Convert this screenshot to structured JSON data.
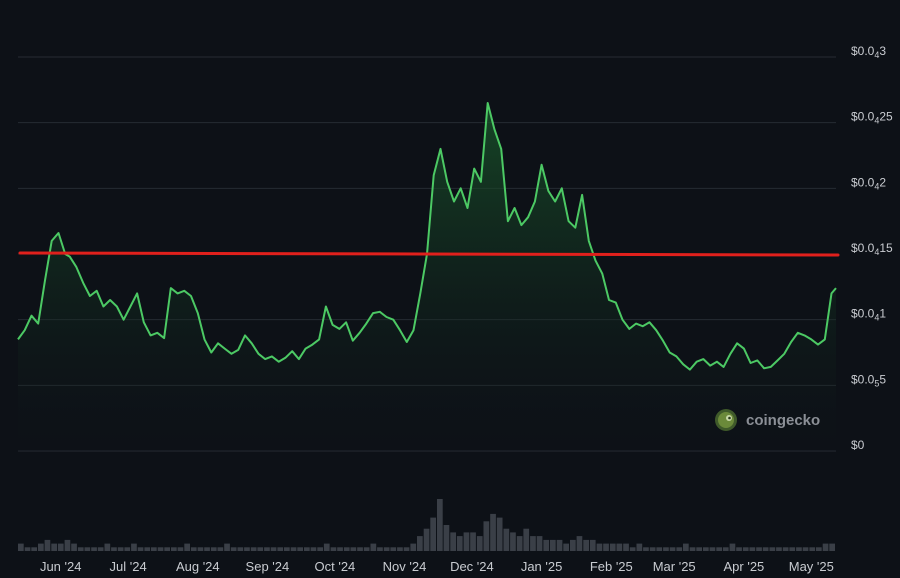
{
  "chart_data": {
    "type": "line",
    "title": "",
    "xlabel": "",
    "ylabel": "",
    "x_ticks": [
      "Jun '24",
      "Jul '24",
      "Aug '24",
      "Sep '24",
      "Oct '24",
      "Nov '24",
      "Dec '24",
      "Jan '25",
      "Feb '25",
      "Mar '25",
      "Apr '25",
      "May '25"
    ],
    "y_ticks": [
      {
        "value": 0,
        "parts": [
          {
            "t": "$0"
          }
        ]
      },
      {
        "value": 5e-06,
        "parts": [
          {
            "t": "$0.0"
          },
          {
            "t": "5",
            "sub": true
          },
          {
            "t": "5"
          }
        ]
      },
      {
        "value": 1e-05,
        "parts": [
          {
            "t": "$0.0"
          },
          {
            "t": "4",
            "sub": true
          },
          {
            "t": "1"
          }
        ]
      },
      {
        "value": 1.5e-05,
        "parts": [
          {
            "t": "$0.0"
          },
          {
            "t": "4",
            "sub": true
          },
          {
            "t": "15"
          }
        ]
      },
      {
        "value": 2e-05,
        "parts": [
          {
            "t": "$0.0"
          },
          {
            "t": "4",
            "sub": true
          },
          {
            "t": "2"
          }
        ]
      },
      {
        "value": 2.5e-05,
        "parts": [
          {
            "t": "$0.0"
          },
          {
            "t": "4",
            "sub": true
          },
          {
            "t": "25"
          }
        ]
      },
      {
        "value": 3e-05,
        "parts": [
          {
            "t": "$0.0"
          },
          {
            "t": "4",
            "sub": true
          },
          {
            "t": "3"
          }
        ]
      }
    ],
    "ylim": [
      0,
      3e-05
    ],
    "grid": true,
    "price_series": {
      "color": "#4cc964",
      "x": [
        "2024-05-13",
        "2024-05-16",
        "2024-05-19",
        "2024-05-22",
        "2024-05-25",
        "2024-05-28",
        "2024-05-31",
        "2024-06-03",
        "2024-06-05",
        "2024-06-08",
        "2024-06-11",
        "2024-06-14",
        "2024-06-17",
        "2024-06-20",
        "2024-06-23",
        "2024-06-26",
        "2024-06-29",
        "2024-07-02",
        "2024-07-05",
        "2024-07-08",
        "2024-07-11",
        "2024-07-14",
        "2024-07-17",
        "2024-07-20",
        "2024-07-23",
        "2024-07-26",
        "2024-07-29",
        "2024-08-01",
        "2024-08-04",
        "2024-08-07",
        "2024-08-10",
        "2024-08-13",
        "2024-08-16",
        "2024-08-19",
        "2024-08-22",
        "2024-08-25",
        "2024-08-28",
        "2024-08-31",
        "2024-09-03",
        "2024-09-06",
        "2024-09-09",
        "2024-09-12",
        "2024-09-15",
        "2024-09-18",
        "2024-09-21",
        "2024-09-24",
        "2024-09-27",
        "2024-09-30",
        "2024-10-03",
        "2024-10-06",
        "2024-10-09",
        "2024-10-12",
        "2024-10-15",
        "2024-10-18",
        "2024-10-21",
        "2024-10-24",
        "2024-10-27",
        "2024-10-30",
        "2024-11-02",
        "2024-11-05",
        "2024-11-08",
        "2024-11-11",
        "2024-11-14",
        "2024-11-17",
        "2024-11-20",
        "2024-11-23",
        "2024-11-26",
        "2024-11-29",
        "2024-12-02",
        "2024-12-05",
        "2024-12-08",
        "2024-12-11",
        "2024-12-14",
        "2024-12-17",
        "2024-12-20",
        "2024-12-23",
        "2024-12-26",
        "2024-12-29",
        "2025-01-01",
        "2025-01-04",
        "2025-01-07",
        "2025-01-10",
        "2025-01-13",
        "2025-01-16",
        "2025-01-19",
        "2025-01-22",
        "2025-01-25",
        "2025-01-28",
        "2025-01-31",
        "2025-02-03",
        "2025-02-06",
        "2025-02-09",
        "2025-02-12",
        "2025-02-15",
        "2025-02-18",
        "2025-02-21",
        "2025-02-24",
        "2025-02-27",
        "2025-03-02",
        "2025-03-05",
        "2025-03-08",
        "2025-03-11",
        "2025-03-14",
        "2025-03-17",
        "2025-03-20",
        "2025-03-23",
        "2025-03-26",
        "2025-03-29",
        "2025-04-01",
        "2025-04-04",
        "2025-04-07",
        "2025-04-10",
        "2025-04-13",
        "2025-04-16",
        "2025-04-19",
        "2025-04-22",
        "2025-04-25",
        "2025-04-28",
        "2025-05-01",
        "2025-05-04",
        "2025-05-07",
        "2025-05-10",
        "2025-05-12"
      ],
      "y": [
        8.5e-06,
        9.2e-06,
        1.03e-05,
        9.7e-06,
        1.3e-05,
        1.6e-05,
        1.66e-05,
        1.5e-05,
        1.48e-05,
        1.4e-05,
        1.28e-05,
        1.18e-05,
        1.22e-05,
        1.1e-05,
        1.15e-05,
        1.1e-05,
        1e-05,
        1.1e-05,
        1.2e-05,
        9.8e-06,
        8.8e-06,
        9e-06,
        8.6e-06,
        1.24e-05,
        1.2e-05,
        1.22e-05,
        1.18e-05,
        1.05e-05,
        8.5e-06,
        7.5e-06,
        8.2e-06,
        7.8e-06,
        7.4e-06,
        7.7e-06,
        8.8e-06,
        8.2e-06,
        7.4e-06,
        7e-06,
        7.2e-06,
        6.8e-06,
        7.1e-06,
        7.6e-06,
        7e-06,
        7.8e-06,
        8.1e-06,
        8.5e-06,
        1.1e-05,
        9.6e-06,
        9.3e-06,
        9.8e-06,
        8.4e-06,
        9e-06,
        9.7e-06,
        1.05e-05,
        1.06e-05,
        1.02e-05,
        1e-05,
        9.2e-06,
        8.3e-06,
        9.2e-06,
        1.2e-05,
        1.5e-05,
        2.1e-05,
        2.3e-05,
        2.05e-05,
        1.9e-05,
        2e-05,
        1.85e-05,
        2.15e-05,
        2.05e-05,
        2.65e-05,
        2.45e-05,
        2.3e-05,
        1.75e-05,
        1.85e-05,
        1.72e-05,
        1.78e-05,
        1.9e-05,
        2.18e-05,
        1.98e-05,
        1.9e-05,
        2e-05,
        1.75e-05,
        1.7e-05,
        1.95e-05,
        1.6e-05,
        1.45e-05,
        1.35e-05,
        1.15e-05,
        1.13e-05,
        1e-05,
        9.3e-06,
        9.7e-06,
        9.5e-06,
        9.8e-06,
        9.2e-06,
        8.4e-06,
        7.5e-06,
        7.2e-06,
        6.6e-06,
        6.2e-06,
        6.8e-06,
        7e-06,
        6.5e-06,
        6.8e-06,
        6.4e-06,
        7.4e-06,
        8.2e-06,
        7.8e-06,
        6.7e-06,
        6.9e-06,
        6.3e-06,
        6.4e-06,
        6.9e-06,
        7.4e-06,
        8.3e-06,
        9e-06,
        8.8e-06,
        8.5e-06,
        8.1e-06,
        8.5e-06,
        1.2e-05,
        1.24e-05
      ]
    },
    "reference_line": {
      "color": "#e0201c",
      "y": 1.5e-05
    },
    "volume_series": {
      "color": "#3a3f47",
      "values": [
        2,
        1,
        1,
        2,
        3,
        2,
        2,
        3,
        2,
        1,
        1,
        1,
        1,
        2,
        1,
        1,
        1,
        2,
        1,
        1,
        1,
        1,
        1,
        1,
        1,
        2,
        1,
        1,
        1,
        1,
        1,
        2,
        1,
        1,
        1,
        1,
        1,
        1,
        1,
        1,
        1,
        1,
        1,
        1,
        1,
        1,
        2,
        1,
        1,
        1,
        1,
        1,
        1,
        2,
        1,
        1,
        1,
        1,
        1,
        2,
        4,
        6,
        9,
        14,
        7,
        5,
        4,
        5,
        5,
        4,
        8,
        10,
        9,
        6,
        5,
        4,
        6,
        4,
        4,
        3,
        3,
        3,
        2,
        3,
        4,
        3,
        3,
        2,
        2,
        2,
        2,
        2,
        1,
        2,
        1,
        1,
        1,
        1,
        1,
        1,
        2,
        1,
        1,
        1,
        1,
        1,
        1,
        2,
        1,
        1,
        1,
        1,
        1,
        1,
        1,
        1,
        1,
        1,
        1,
        1,
        1,
        2,
        2
      ]
    },
    "watermark": {
      "text": "coingecko",
      "logo": "coingecko-logo-icon"
    }
  }
}
